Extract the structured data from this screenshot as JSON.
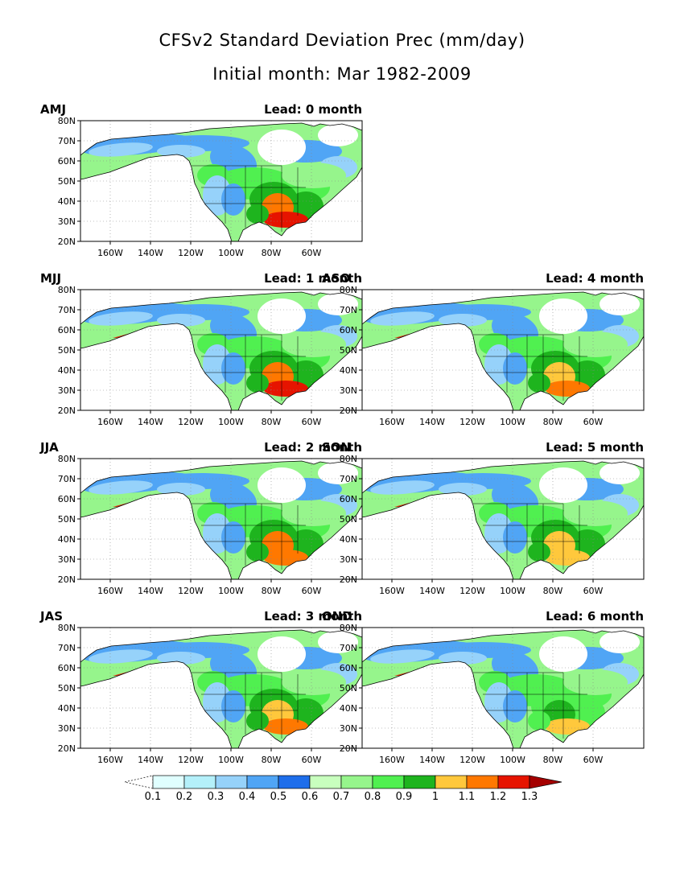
{
  "title": "CFSv2 Standard Deviation Prec (mm/day)",
  "subtitle": "Initial month: Mar 1982-2009",
  "lat_labels": [
    "80N",
    "70N",
    "60N",
    "50N",
    "40N",
    "30N",
    "20N"
  ],
  "lon_labels": [
    "160W",
    "140W",
    "120W",
    "100W",
    "80W",
    "60W"
  ],
  "panels": [
    {
      "season": "AMJ",
      "lead": "Lead: 0 month",
      "intensity": 1.0
    },
    {
      "season": "MJJ",
      "lead": "Lead: 1 month",
      "intensity": 0.9
    },
    {
      "season": "JJA",
      "lead": "Lead: 2 month",
      "intensity": 0.85
    },
    {
      "season": "JAS",
      "lead": "Lead: 3 month",
      "intensity": 0.8
    },
    {
      "season": "ASO",
      "lead": "Lead: 4 month",
      "intensity": 0.7
    },
    {
      "season": "SON",
      "lead": "Lead: 5 month",
      "intensity": 0.55
    },
    {
      "season": "OND",
      "lead": "Lead: 6 month",
      "intensity": 0.45
    }
  ],
  "colorbar": {
    "labels": [
      "0.1",
      "0.2",
      "0.3",
      "0.4",
      "0.5",
      "0.6",
      "0.7",
      "0.8",
      "0.9",
      "1",
      "1.1",
      "1.2",
      "1.3"
    ],
    "colors": [
      "#ffffff",
      "#e0ffff",
      "#b4f0fa",
      "#96d2fa",
      "#50a5f5",
      "#1e6eeb",
      "#c8ffbe",
      "#96f58c",
      "#50f050",
      "#1eb41e",
      "#ffc83c",
      "#ff7800",
      "#e61400",
      "#a50000"
    ]
  }
}
